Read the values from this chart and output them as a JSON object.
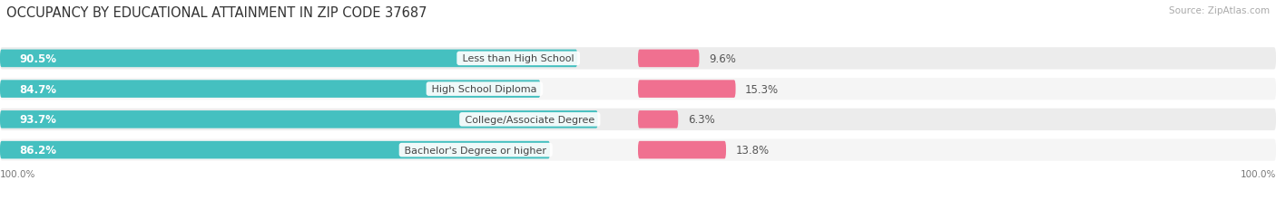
{
  "title": "OCCUPANCY BY EDUCATIONAL ATTAINMENT IN ZIP CODE 37687",
  "source": "Source: ZipAtlas.com",
  "categories": [
    "Less than High School",
    "High School Diploma",
    "College/Associate Degree",
    "Bachelor's Degree or higher"
  ],
  "owner_pct": [
    90.5,
    84.7,
    93.7,
    86.2
  ],
  "renter_pct": [
    9.6,
    15.3,
    6.3,
    13.8
  ],
  "owner_color": "#45c0c0",
  "renter_color": "#f07090",
  "bg_row_color": "#e8e8e8",
  "bar_bg_color": "#d8d8d8",
  "title_fontsize": 10.5,
  "source_fontsize": 7.5,
  "pct_fontsize": 8.5,
  "cat_fontsize": 8.0,
  "legend_fontsize": 8.5,
  "bar_height": 0.58,
  "axis_label_left": "100.0%",
  "axis_label_right": "100.0%",
  "owner_label_color": "white",
  "renter_label_color": "#555555",
  "cat_label_color": "#444444"
}
